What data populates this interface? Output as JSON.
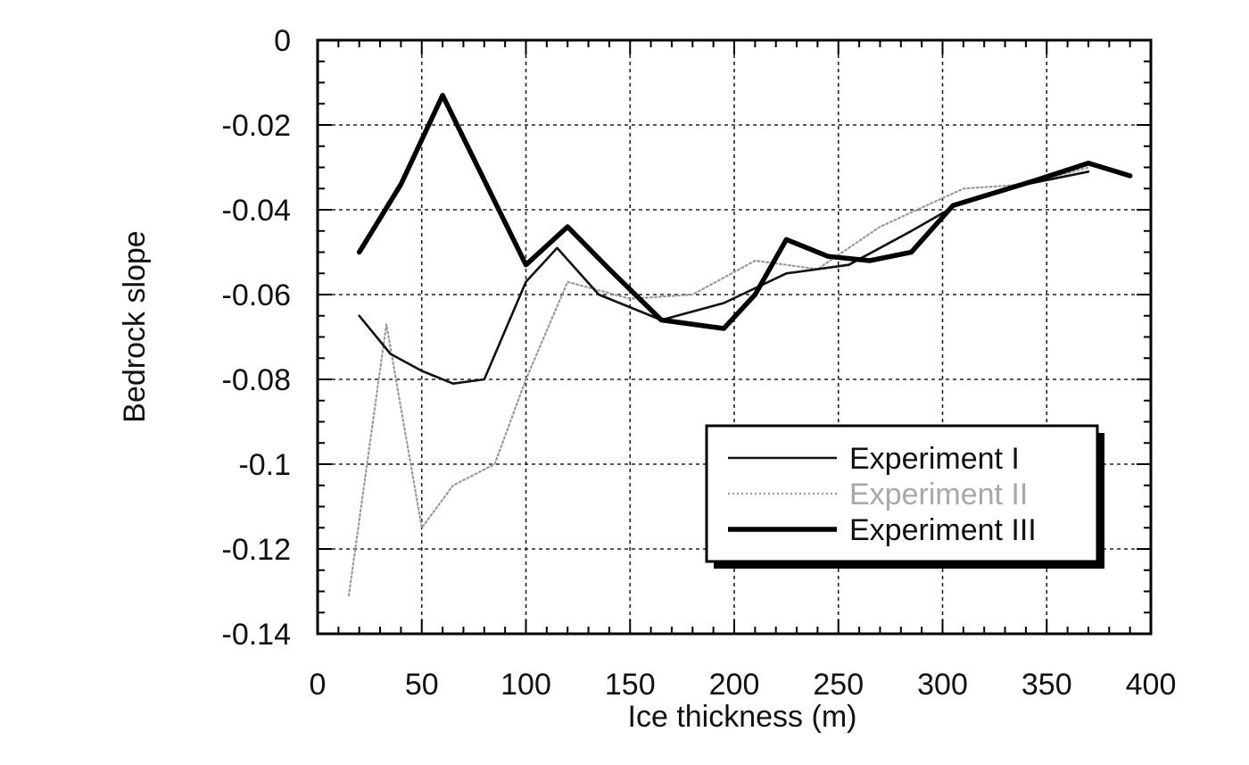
{
  "chart_data": {
    "type": "line",
    "title": "",
    "xlabel": "Ice thickness (m)",
    "ylabel": "Bedrock slope",
    "xlim": [
      0,
      400
    ],
    "ylim": [
      -0.14,
      0
    ],
    "x_ticks": [
      0,
      50,
      100,
      150,
      200,
      250,
      300,
      350,
      400
    ],
    "x_tick_labels": [
      "0",
      "50",
      "100",
      "150",
      "200",
      "250",
      "300",
      "350",
      "400"
    ],
    "y_ticks": [
      0,
      -0.02,
      -0.04,
      -0.06,
      -0.08,
      -0.1,
      -0.12,
      -0.14
    ],
    "y_tick_labels": [
      "0",
      "-0.02",
      "-0.04",
      "-0.06",
      "-0.08",
      "-0.1",
      "-0.12",
      "-0.14"
    ],
    "grid": true,
    "legend_position": "lower-right",
    "series": [
      {
        "name": "Experiment I",
        "color": "#111111",
        "style": "solid",
        "x": [
          20,
          35,
          50,
          65,
          80,
          100,
          115,
          135,
          165,
          195,
          225,
          255,
          285,
          310,
          340,
          370
        ],
        "y": [
          -0.065,
          -0.074,
          -0.078,
          -0.081,
          -0.08,
          -0.057,
          -0.049,
          -0.06,
          -0.066,
          -0.062,
          -0.055,
          -0.053,
          -0.045,
          -0.038,
          -0.034,
          -0.031
        ]
      },
      {
        "name": "Experiment II",
        "color": "#9a9a9a",
        "style": "dotted",
        "x": [
          15,
          33,
          50,
          65,
          85,
          100,
          120,
          150,
          180,
          210,
          240,
          270,
          310,
          340,
          370
        ],
        "y": [
          -0.131,
          -0.067,
          -0.115,
          -0.105,
          -0.1,
          -0.08,
          -0.057,
          -0.061,
          -0.06,
          -0.052,
          -0.054,
          -0.044,
          -0.035,
          -0.034,
          -0.03
        ]
      },
      {
        "name": "Experiment III",
        "color": "#000000",
        "style": "solid-thick",
        "x": [
          20,
          40,
          60,
          80,
          100,
          120,
          140,
          165,
          195,
          210,
          225,
          245,
          265,
          285,
          305,
          325,
          345,
          370,
          390
        ],
        "y": [
          -0.05,
          -0.034,
          -0.013,
          -0.033,
          -0.053,
          -0.044,
          -0.054,
          -0.066,
          -0.068,
          -0.06,
          -0.047,
          -0.051,
          -0.052,
          -0.05,
          -0.039,
          -0.036,
          -0.033,
          -0.029,
          -0.032
        ]
      }
    ]
  }
}
